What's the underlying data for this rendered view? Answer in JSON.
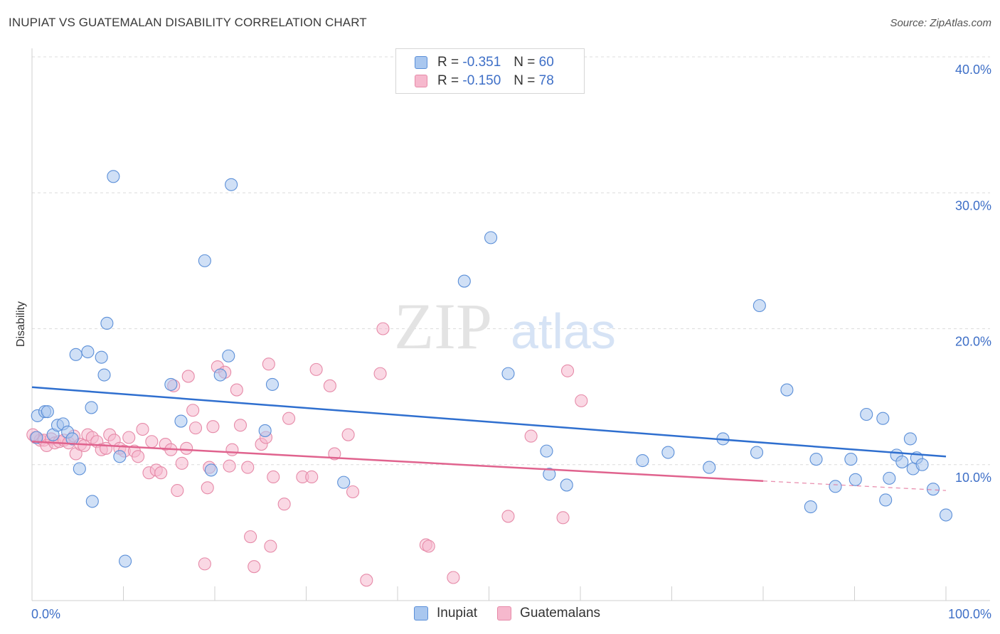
{
  "header": {
    "title": "INUPIAT VS GUATEMALAN DISABILITY CORRELATION CHART",
    "source": "Source: ZipAtlas.com"
  },
  "watermark": {
    "zip": "ZIP",
    "atlas": "atlas"
  },
  "legend": {
    "rows": [
      {
        "r_label": "R = ",
        "r_value": "-0.351",
        "n_label": "N = ",
        "n_value": "60",
        "color": "#a9c7ef"
      },
      {
        "r_label": "R = ",
        "r_value": "-0.150",
        "n_label": "N = ",
        "n_value": "78",
        "color": "#f6b8cd"
      }
    ]
  },
  "bottom_legend": {
    "items": [
      {
        "label": "Inupiat",
        "color": "#a9c7ef"
      },
      {
        "label": "Guatemalans",
        "color": "#f6b8cd"
      }
    ]
  },
  "chart_data": {
    "type": "scatter",
    "title": "INUPIAT VS GUATEMALAN DISABILITY CORRELATION CHART",
    "ylabel": "Disability",
    "xlabel": "",
    "xlim": [
      0,
      100
    ],
    "ylim": [
      0,
      40
    ],
    "x_tick_labels": [
      "0.0%",
      "100.0%"
    ],
    "y_ticks": [
      10,
      20,
      30,
      40
    ],
    "y_tick_labels": [
      "10.0%",
      "20.0%",
      "30.0%",
      "40.0%"
    ],
    "grid": "horizontal dashed",
    "series": [
      {
        "name": "Inupiat",
        "color": "#5b8fd8",
        "fill": "#a9c7ef",
        "trend": {
          "x": [
            0,
            100
          ],
          "y": [
            15.7,
            10.6
          ],
          "color": "#2f6fcf"
        },
        "points": [
          [
            0.6,
            13.6
          ],
          [
            1.4,
            13.9
          ],
          [
            1.7,
            13.9
          ],
          [
            2.3,
            12.2
          ],
          [
            2.8,
            12.9
          ],
          [
            3.4,
            13.0
          ],
          [
            3.9,
            12.4
          ],
          [
            4.4,
            11.9
          ],
          [
            4.8,
            18.1
          ],
          [
            5.2,
            9.7
          ],
          [
            6.1,
            18.3
          ],
          [
            6.5,
            14.2
          ],
          [
            6.6,
            7.3
          ],
          [
            7.6,
            17.9
          ],
          [
            7.9,
            16.6
          ],
          [
            8.2,
            20.4
          ],
          [
            8.9,
            31.2
          ],
          [
            9.6,
            10.6
          ],
          [
            10.2,
            2.9
          ],
          [
            15.2,
            15.9
          ],
          [
            16.3,
            13.2
          ],
          [
            18.9,
            25.0
          ],
          [
            19.6,
            9.6
          ],
          [
            20.6,
            16.6
          ],
          [
            21.5,
            18.0
          ],
          [
            21.8,
            30.6
          ],
          [
            25.5,
            12.5
          ],
          [
            26.3,
            15.9
          ],
          [
            34.1,
            8.7
          ],
          [
            47.3,
            23.5
          ],
          [
            50.2,
            26.7
          ],
          [
            52.1,
            16.7
          ],
          [
            56.3,
            11.0
          ],
          [
            56.6,
            9.3
          ],
          [
            58.5,
            8.5
          ],
          [
            66.8,
            10.3
          ],
          [
            69.6,
            10.9
          ],
          [
            74.1,
            9.8
          ],
          [
            75.6,
            11.9
          ],
          [
            79.3,
            10.9
          ],
          [
            79.6,
            21.7
          ],
          [
            82.6,
            15.5
          ],
          [
            85.2,
            6.9
          ],
          [
            85.8,
            10.4
          ],
          [
            87.9,
            8.4
          ],
          [
            89.6,
            10.4
          ],
          [
            90.1,
            8.9
          ],
          [
            91.3,
            13.7
          ],
          [
            93.1,
            13.4
          ],
          [
            93.4,
            7.4
          ],
          [
            93.8,
            9.0
          ],
          [
            94.6,
            10.7
          ],
          [
            95.2,
            10.2
          ],
          [
            96.1,
            11.9
          ],
          [
            96.4,
            9.7
          ],
          [
            96.8,
            10.5
          ],
          [
            97.4,
            10.0
          ],
          [
            98.6,
            8.2
          ],
          [
            100.0,
            6.3
          ],
          [
            0.5,
            12.0
          ]
        ]
      },
      {
        "name": "Guatemalans",
        "color": "#e68aa8",
        "fill": "#f6b8cd",
        "trend": {
          "x": [
            0,
            80
          ],
          "y": [
            11.7,
            8.8
          ],
          "color": "#e0638e",
          "dashed_extension": {
            "x": [
              80,
              100
            ],
            "y": [
              8.8,
              8.1
            ]
          }
        },
        "points": [
          [
            0.4,
            12.0
          ],
          [
            0.9,
            11.8
          ],
          [
            1.3,
            11.8
          ],
          [
            1.6,
            11.4
          ],
          [
            2.1,
            11.9
          ],
          [
            2.5,
            11.6
          ],
          [
            3.0,
            11.7
          ],
          [
            3.5,
            11.8
          ],
          [
            4.0,
            11.6
          ],
          [
            4.6,
            12.1
          ],
          [
            4.8,
            10.8
          ],
          [
            5.3,
            11.5
          ],
          [
            5.7,
            11.4
          ],
          [
            6.1,
            12.2
          ],
          [
            6.6,
            12.0
          ],
          [
            7.1,
            11.7
          ],
          [
            7.6,
            11.1
          ],
          [
            8.1,
            11.2
          ],
          [
            8.5,
            12.2
          ],
          [
            9.0,
            11.8
          ],
          [
            9.6,
            11.2
          ],
          [
            10.1,
            11.0
          ],
          [
            10.6,
            12.0
          ],
          [
            11.2,
            11.0
          ],
          [
            11.6,
            10.6
          ],
          [
            12.1,
            12.6
          ],
          [
            12.8,
            9.4
          ],
          [
            13.1,
            11.7
          ],
          [
            13.6,
            9.6
          ],
          [
            14.1,
            9.4
          ],
          [
            14.6,
            11.5
          ],
          [
            15.2,
            11.1
          ],
          [
            15.5,
            15.8
          ],
          [
            15.9,
            8.1
          ],
          [
            16.4,
            10.1
          ],
          [
            16.9,
            11.2
          ],
          [
            17.1,
            16.5
          ],
          [
            17.6,
            14.0
          ],
          [
            17.9,
            12.7
          ],
          [
            18.9,
            2.7
          ],
          [
            19.2,
            8.3
          ],
          [
            19.4,
            9.8
          ],
          [
            19.8,
            12.8
          ],
          [
            20.3,
            17.2
          ],
          [
            21.1,
            16.8
          ],
          [
            21.6,
            9.9
          ],
          [
            21.9,
            11.1
          ],
          [
            22.4,
            15.5
          ],
          [
            22.8,
            12.9
          ],
          [
            23.6,
            9.8
          ],
          [
            23.9,
            4.7
          ],
          [
            24.3,
            2.5
          ],
          [
            25.1,
            11.5
          ],
          [
            25.6,
            12.0
          ],
          [
            25.9,
            17.4
          ],
          [
            26.1,
            4.0
          ],
          [
            26.4,
            9.1
          ],
          [
            27.6,
            7.1
          ],
          [
            28.1,
            13.4
          ],
          [
            29.6,
            9.1
          ],
          [
            30.6,
            9.1
          ],
          [
            31.1,
            17.0
          ],
          [
            32.6,
            15.8
          ],
          [
            33.1,
            10.8
          ],
          [
            34.6,
            12.2
          ],
          [
            35.1,
            8.0
          ],
          [
            36.6,
            1.5
          ],
          [
            38.1,
            16.7
          ],
          [
            38.4,
            20.0
          ],
          [
            43.1,
            4.1
          ],
          [
            43.4,
            4.0
          ],
          [
            46.1,
            1.7
          ],
          [
            52.1,
            6.2
          ],
          [
            54.6,
            12.1
          ],
          [
            58.6,
            16.9
          ],
          [
            60.1,
            14.7
          ],
          [
            58.1,
            6.1
          ],
          [
            0.1,
            12.2
          ]
        ]
      }
    ]
  }
}
